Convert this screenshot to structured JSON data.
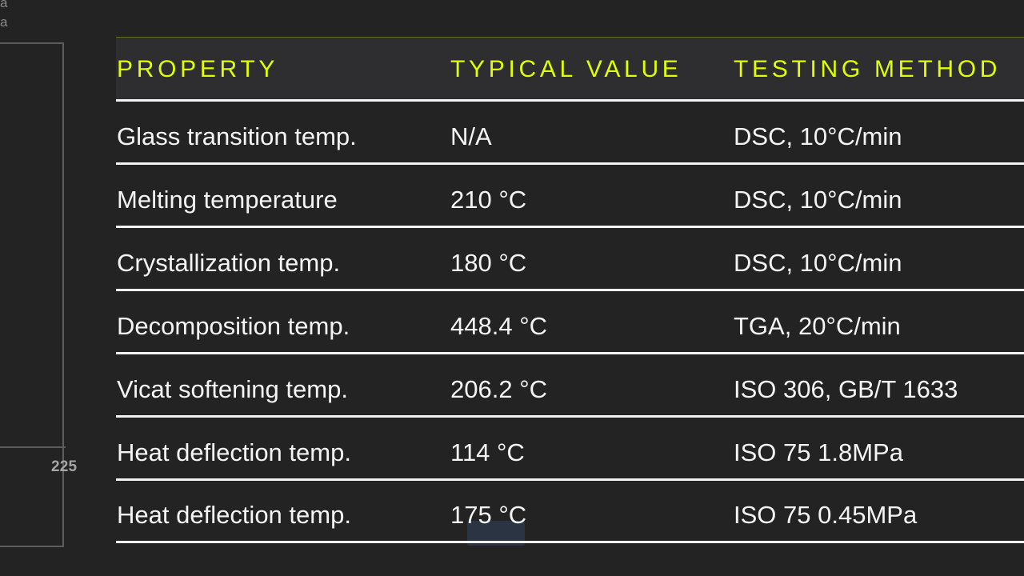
{
  "left_panel": {
    "fragment_text_1": "a",
    "fragment_text_2": "a",
    "label": "225"
  },
  "table": {
    "headers": [
      "PROPERTY",
      "TYPICAL VALUE",
      "TESTING METHOD"
    ],
    "rows": [
      [
        "Glass transition temp.",
        "N/A",
        "DSC, 10°C/min"
      ],
      [
        "Melting temperature",
        "210 °C",
        "DSC, 10°C/min"
      ],
      [
        "Crystallization temp.",
        "180 °C",
        "DSC, 10°C/min"
      ],
      [
        "Decomposition temp.",
        "448.4 °C",
        "TGA, 20°C/min"
      ],
      [
        "Vicat softening temp.",
        "206.2 °C",
        "ISO 306, GB/T 1633"
      ],
      [
        "Heat deflection temp.",
        "114 °C",
        "ISO 75 1.8MPa"
      ],
      [
        "Heat deflection temp.",
        "175 °C",
        "ISO 75 0.45MPa"
      ]
    ]
  },
  "colors": {
    "background": "#232323",
    "header_background": "#2e2e31",
    "accent": "#dfff00",
    "text": "#f4f4f4",
    "divider": "#f3f3f3",
    "left_panel_line": "#5d5d5d",
    "selection_highlight": "#32435f"
  }
}
